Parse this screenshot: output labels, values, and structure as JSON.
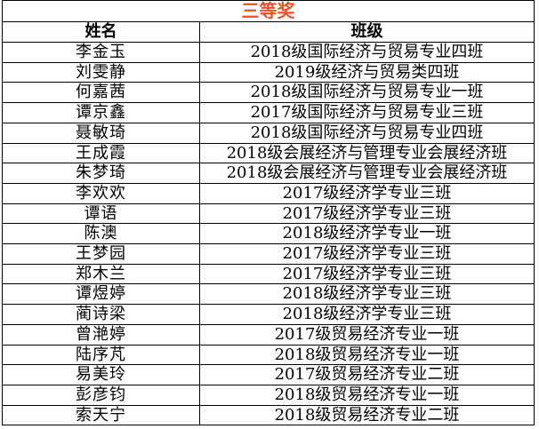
{
  "title": "三等奖",
  "title_color": "#ef4e25",
  "border_color": "#000000",
  "columns": [
    "姓名",
    "班级"
  ],
  "rows": [
    {
      "name": "李金玉",
      "class": "2018级国际经济与贸易专业四班"
    },
    {
      "name": "刘雯静",
      "class": "2019级经济与贸易类四班"
    },
    {
      "name": "何嘉茜",
      "class": "2018级国际经济与贸易专业一班"
    },
    {
      "name": "谭京鑫",
      "class": "2017级国际经济与贸易专业三班"
    },
    {
      "name": "聂敏琦",
      "class": "2018级国际经济与贸易专业四班"
    },
    {
      "name": "王成霞",
      "class": "2018级会展经济与管理专业会展经济班"
    },
    {
      "name": "朱梦琦",
      "class": "2018级会展经济与管理专业会展经济班"
    },
    {
      "name": "李欢欢",
      "class": "2017级经济学专业三班"
    },
    {
      "name": "谭语",
      "class": "2017级经济学专业三班"
    },
    {
      "name": "陈澳",
      "class": "2018级经济学专业一班"
    },
    {
      "name": "王梦园",
      "class": "2017级经济学专业三班"
    },
    {
      "name": "郑木兰",
      "class": "2017级经济学专业三班"
    },
    {
      "name": "谭煜婷",
      "class": "2018级经济学专业三班"
    },
    {
      "name": "蔺诗梁",
      "class": "2018级经济学专业三班"
    },
    {
      "name": "曾滟婷",
      "class": "2017级贸易经济专业一班"
    },
    {
      "name": "陆序芃",
      "class": "2018级贸易经济专业一班"
    },
    {
      "name": "易美玲",
      "class": "2017级贸易经济专业二班"
    },
    {
      "name": "彭彦钧",
      "class": "2018级贸易经济专业一班"
    },
    {
      "name": "索天宁",
      "class": "2018级贸易经济专业二班"
    }
  ]
}
